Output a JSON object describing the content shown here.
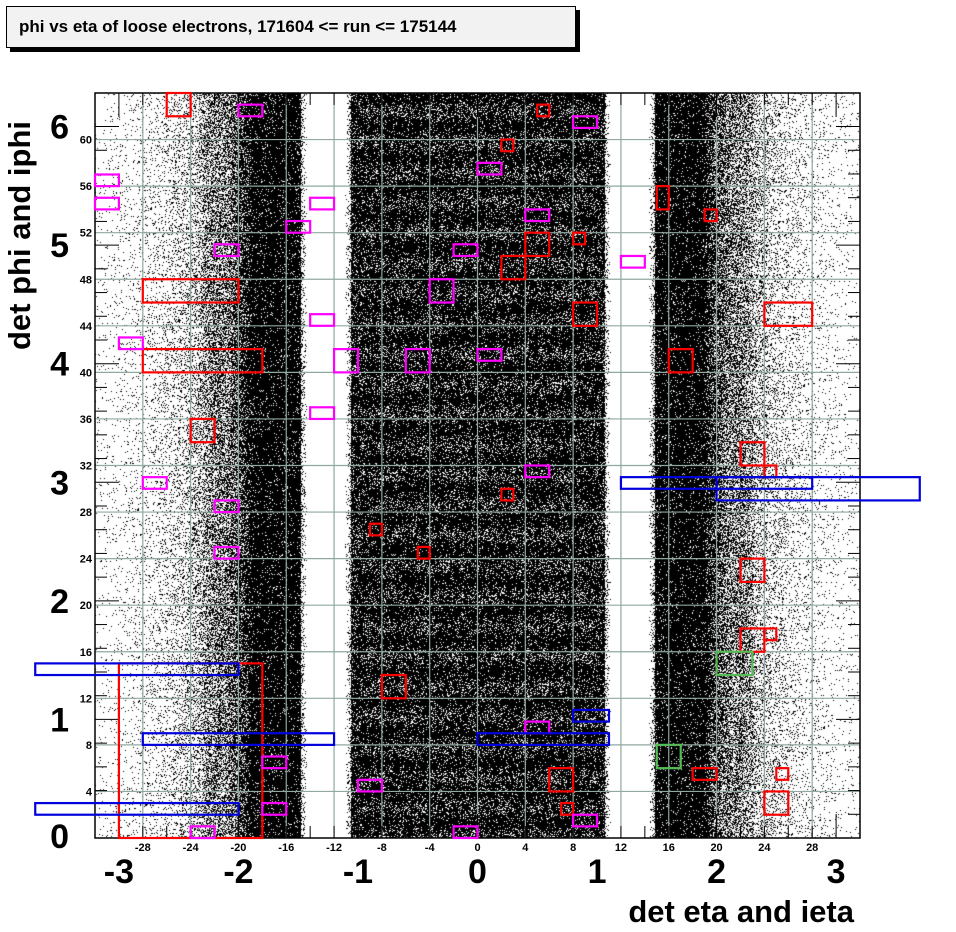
{
  "chart_data": {
    "type": "heatmap",
    "title": "phi vs eta of loose electrons, 171604 <= run <= 175144",
    "xlabel": "det eta and ieta",
    "ylabel": "det phi and iphi",
    "x_range_ieta": [
      -32,
      32
    ],
    "y_range_iphi": [
      0,
      64
    ],
    "x_range_eta": [
      -3.2,
      3.2
    ],
    "y_range_phi": [
      0,
      6.283
    ],
    "grid": true,
    "ieta_ticks": [
      -28,
      -24,
      -20,
      -16,
      -12,
      -8,
      -4,
      0,
      4,
      8,
      12,
      16,
      20,
      24,
      28
    ],
    "iphi_ticks": [
      4,
      8,
      12,
      16,
      20,
      24,
      28,
      32,
      36,
      40,
      44,
      48,
      52,
      56,
      60
    ],
    "eta_ticks": [
      -3,
      -2,
      -1,
      0,
      1,
      2,
      3
    ],
    "phi_ticks": [
      0,
      1,
      2,
      3,
      4,
      5,
      6
    ],
    "density_description": "scatter of electron positions; dense for |ieta|<=10.6 and 14.8<|ieta|<=19, empty gap at 10.6<|ieta|<14.8, falling off for |ieta|>19",
    "gaps_ieta": [
      [
        -14.8,
        -10.6
      ],
      [
        10.6,
        14.8
      ]
    ],
    "colors": {
      "points": "#000000",
      "grid": "#8fa8a0",
      "red": "#ff0000",
      "magenta": "#ff00ff",
      "blue": "#0000dd",
      "green": "#55bb55"
    },
    "boxes": [
      {
        "color": "red",
        "ieta": [
          -26,
          -24
        ],
        "iphi": [
          62,
          64
        ]
      },
      {
        "color": "red",
        "ieta": [
          5,
          6
        ],
        "iphi": [
          62,
          63
        ]
      },
      {
        "color": "red",
        "ieta": [
          2,
          3
        ],
        "iphi": [
          59,
          60
        ]
      },
      {
        "color": "red",
        "ieta": [
          15,
          16
        ],
        "iphi": [
          54,
          56
        ]
      },
      {
        "color": "red",
        "ieta": [
          19,
          20
        ],
        "iphi": [
          53,
          54
        ]
      },
      {
        "color": "red",
        "ieta": [
          8,
          9
        ],
        "iphi": [
          51,
          52
        ]
      },
      {
        "color": "red",
        "ieta": [
          4,
          6
        ],
        "iphi": [
          50,
          52
        ]
      },
      {
        "color": "red",
        "ieta": [
          2,
          4
        ],
        "iphi": [
          48,
          50
        ]
      },
      {
        "color": "red",
        "ieta": [
          -28,
          -20
        ],
        "iphi": [
          46,
          48
        ]
      },
      {
        "color": "red",
        "ieta": [
          8,
          10
        ],
        "iphi": [
          44,
          46
        ]
      },
      {
        "color": "red",
        "ieta": [
          24,
          28
        ],
        "iphi": [
          44,
          46
        ]
      },
      {
        "color": "red",
        "ieta": [
          -28,
          -18
        ],
        "iphi": [
          40,
          42
        ]
      },
      {
        "color": "red",
        "ieta": [
          16,
          18
        ],
        "iphi": [
          40,
          42
        ]
      },
      {
        "color": "red",
        "ieta": [
          -24,
          -22
        ],
        "iphi": [
          34,
          36
        ]
      },
      {
        "color": "red",
        "ieta": [
          22,
          24
        ],
        "iphi": [
          32,
          34
        ]
      },
      {
        "color": "red",
        "ieta": [
          24,
          25
        ],
        "iphi": [
          31,
          32
        ]
      },
      {
        "color": "red",
        "ieta": [
          2,
          3
        ],
        "iphi": [
          29,
          30
        ]
      },
      {
        "color": "red",
        "ieta": [
          -9,
          -8
        ],
        "iphi": [
          26,
          27
        ]
      },
      {
        "color": "red",
        "ieta": [
          -5,
          -4
        ],
        "iphi": [
          24,
          25
        ]
      },
      {
        "color": "red",
        "ieta": [
          22,
          24
        ],
        "iphi": [
          22,
          24
        ]
      },
      {
        "color": "red",
        "ieta": [
          22,
          24
        ],
        "iphi": [
          16,
          18
        ]
      },
      {
        "color": "red",
        "ieta": [
          24,
          25
        ],
        "iphi": [
          17,
          18
        ]
      },
      {
        "color": "red",
        "ieta": [
          -8,
          -6
        ],
        "iphi": [
          12,
          14
        ]
      },
      {
        "color": "red",
        "ieta": [
          -30,
          -18
        ],
        "iphi": [
          0,
          15
        ]
      },
      {
        "color": "red",
        "ieta": [
          6,
          8
        ],
        "iphi": [
          4,
          6
        ]
      },
      {
        "color": "red",
        "ieta": [
          18,
          20
        ],
        "iphi": [
          5,
          6
        ]
      },
      {
        "color": "red",
        "ieta": [
          25,
          26
        ],
        "iphi": [
          5,
          6
        ]
      },
      {
        "color": "red",
        "ieta": [
          7,
          8
        ],
        "iphi": [
          2,
          3
        ]
      },
      {
        "color": "red",
        "ieta": [
          24,
          26
        ],
        "iphi": [
          2,
          4
        ]
      },
      {
        "color": "magenta",
        "ieta": [
          -20,
          -18
        ],
        "iphi": [
          62,
          63
        ]
      },
      {
        "color": "magenta",
        "ieta": [
          8,
          10
        ],
        "iphi": [
          61,
          62
        ]
      },
      {
        "color": "magenta",
        "ieta": [
          0,
          2
        ],
        "iphi": [
          57,
          58
        ]
      },
      {
        "color": "magenta",
        "ieta": [
          -32,
          -30
        ],
        "iphi": [
          56,
          57
        ]
      },
      {
        "color": "magenta",
        "ieta": [
          -32,
          -30
        ],
        "iphi": [
          54,
          55
        ]
      },
      {
        "color": "magenta",
        "ieta": [
          -14,
          -12
        ],
        "iphi": [
          54,
          55
        ]
      },
      {
        "color": "magenta",
        "ieta": [
          4,
          6
        ],
        "iphi": [
          53,
          54
        ]
      },
      {
        "color": "magenta",
        "ieta": [
          -16,
          -14
        ],
        "iphi": [
          52,
          53
        ]
      },
      {
        "color": "magenta",
        "ieta": [
          -22,
          -20
        ],
        "iphi": [
          50,
          51
        ]
      },
      {
        "color": "magenta",
        "ieta": [
          -2,
          0
        ],
        "iphi": [
          50,
          51
        ]
      },
      {
        "color": "magenta",
        "ieta": [
          12,
          14
        ],
        "iphi": [
          49,
          50
        ]
      },
      {
        "color": "magenta",
        "ieta": [
          -4,
          -2
        ],
        "iphi": [
          46,
          48
        ]
      },
      {
        "color": "magenta",
        "ieta": [
          -14,
          -12
        ],
        "iphi": [
          44,
          45
        ]
      },
      {
        "color": "magenta",
        "ieta": [
          -30,
          -28
        ],
        "iphi": [
          42,
          43
        ]
      },
      {
        "color": "magenta",
        "ieta": [
          -12,
          -10
        ],
        "iphi": [
          40,
          42
        ]
      },
      {
        "color": "magenta",
        "ieta": [
          -6,
          -4
        ],
        "iphi": [
          40,
          42
        ]
      },
      {
        "color": "magenta",
        "ieta": [
          0,
          2
        ],
        "iphi": [
          41,
          42
        ]
      },
      {
        "color": "magenta",
        "ieta": [
          -14,
          -12
        ],
        "iphi": [
          36,
          37
        ]
      },
      {
        "color": "magenta",
        "ieta": [
          4,
          6
        ],
        "iphi": [
          31,
          32
        ]
      },
      {
        "color": "magenta",
        "ieta": [
          -28,
          -26
        ],
        "iphi": [
          30,
          31
        ]
      },
      {
        "color": "magenta",
        "ieta": [
          -22,
          -20
        ],
        "iphi": [
          28,
          29
        ]
      },
      {
        "color": "magenta",
        "ieta": [
          -22,
          -20
        ],
        "iphi": [
          24,
          25
        ]
      },
      {
        "color": "magenta",
        "ieta": [
          4,
          6
        ],
        "iphi": [
          9,
          10
        ]
      },
      {
        "color": "magenta",
        "ieta": [
          -18,
          -16
        ],
        "iphi": [
          6,
          7
        ]
      },
      {
        "color": "magenta",
        "ieta": [
          -10,
          -8
        ],
        "iphi": [
          4,
          5
        ]
      },
      {
        "color": "magenta",
        "ieta": [
          -18,
          -16
        ],
        "iphi": [
          2,
          3
        ]
      },
      {
        "color": "magenta",
        "ieta": [
          8,
          10
        ],
        "iphi": [
          1,
          2
        ]
      },
      {
        "color": "magenta",
        "ieta": [
          -24,
          -22
        ],
        "iphi": [
          0,
          1
        ]
      },
      {
        "color": "magenta",
        "ieta": [
          -2,
          0
        ],
        "iphi": [
          0,
          1
        ]
      },
      {
        "color": "blue",
        "ieta": [
          12,
          28
        ],
        "iphi": [
          30,
          31
        ]
      },
      {
        "color": "blue",
        "ieta": [
          20,
          37
        ],
        "iphi": [
          29,
          31
        ]
      },
      {
        "color": "blue",
        "ieta": [
          -37,
          -20
        ],
        "iphi": [
          14,
          15
        ]
      },
      {
        "color": "blue",
        "ieta": [
          8,
          11
        ],
        "iphi": [
          10,
          11
        ]
      },
      {
        "color": "blue",
        "ieta": [
          -28,
          -12
        ],
        "iphi": [
          8,
          9
        ]
      },
      {
        "color": "blue",
        "ieta": [
          0,
          11
        ],
        "iphi": [
          8,
          9
        ]
      },
      {
        "color": "blue",
        "ieta": [
          -37,
          -20
        ],
        "iphi": [
          2,
          3
        ]
      },
      {
        "color": "green",
        "ieta": [
          20,
          23
        ],
        "iphi": [
          14,
          16
        ]
      },
      {
        "color": "green",
        "ieta": [
          15,
          17
        ],
        "iphi": [
          6,
          8
        ]
      }
    ]
  }
}
